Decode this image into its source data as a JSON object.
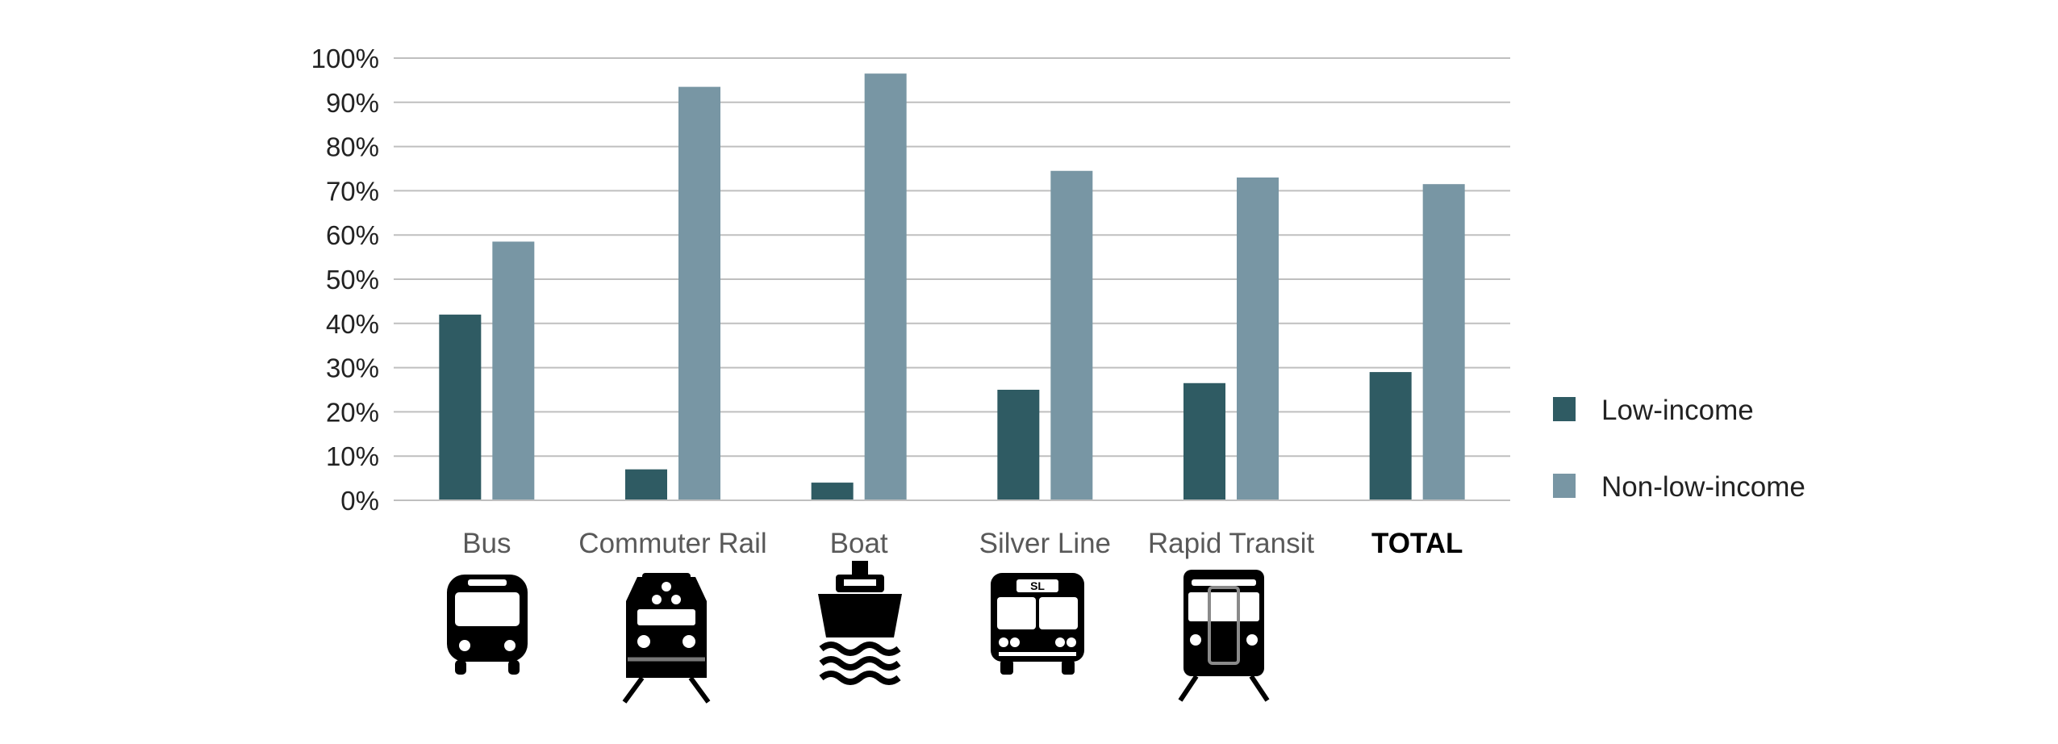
{
  "chart_data": {
    "type": "bar",
    "categories": [
      "Bus",
      "Commuter Rail",
      "Boat",
      "Silver Line",
      "Rapid Transit",
      "TOTAL"
    ],
    "series": [
      {
        "name": "Low-income",
        "color": "#2f5b63",
        "values": [
          42,
          7,
          4,
          25,
          26.5,
          29
        ]
      },
      {
        "name": "Non-low-income",
        "color": "#7896a4",
        "values": [
          58.5,
          93.5,
          96.5,
          74.5,
          73,
          71.5
        ]
      }
    ],
    "y_ticks": [
      "0%",
      "10%",
      "20%",
      "30%",
      "40%",
      "50%",
      "60%",
      "70%",
      "80%",
      "90%",
      "100%"
    ],
    "ylim": [
      0,
      100
    ],
    "grid": true,
    "legend_position": "right",
    "bold_category": "TOTAL",
    "category_icons": [
      "bus-icon",
      "commuter-rail-icon",
      "boat-icon",
      "silver-line-icon",
      "rapid-transit-icon",
      ""
    ],
    "silver_line_badge": "SL"
  }
}
